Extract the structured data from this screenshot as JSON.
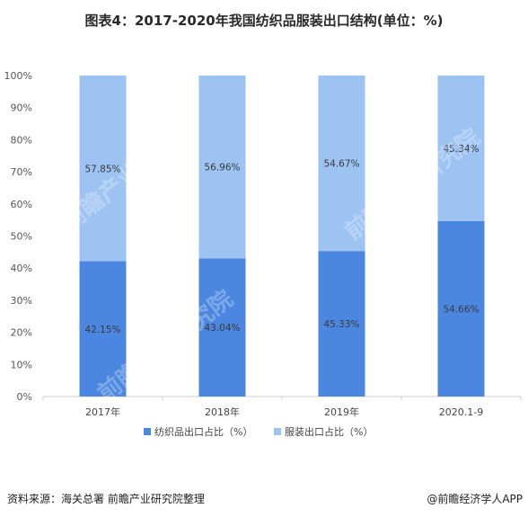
{
  "title": "图表4：2017-2020年我国纺织品服装出口结构(单位：%)",
  "footer": {
    "source": "资料来源：海关总署 前瞻产业研究院整理",
    "brand": "@前瞻经济学人APP"
  },
  "watermark": {
    "text": "前瞻产业研究院"
  },
  "chart_data": {
    "type": "bar",
    "stacked": true,
    "categories": [
      "2017年",
      "2018年",
      "2019年",
      "2020.1-9"
    ],
    "series": [
      {
        "name": "纺织品出口占比（%）",
        "values": [
          42.15,
          43.04,
          45.33,
          54.66
        ],
        "labels": [
          "42.15%",
          "43.04%",
          "45.33%",
          "54.66%"
        ],
        "color": "#4b87e0"
      },
      {
        "name": "服装出口占比（%）",
        "values": [
          57.85,
          56.96,
          54.67,
          45.34
        ],
        "labels": [
          "57.85%",
          "56.96%",
          "54.67%",
          "45.34%"
        ],
        "color": "#9dc3f2"
      }
    ],
    "ylim": [
      0,
      100
    ],
    "yticks": [
      "0%",
      "10%",
      "20%",
      "30%",
      "40%",
      "50%",
      "60%",
      "70%",
      "80%",
      "90%",
      "100%"
    ],
    "grid": false,
    "legend": "bottom"
  }
}
